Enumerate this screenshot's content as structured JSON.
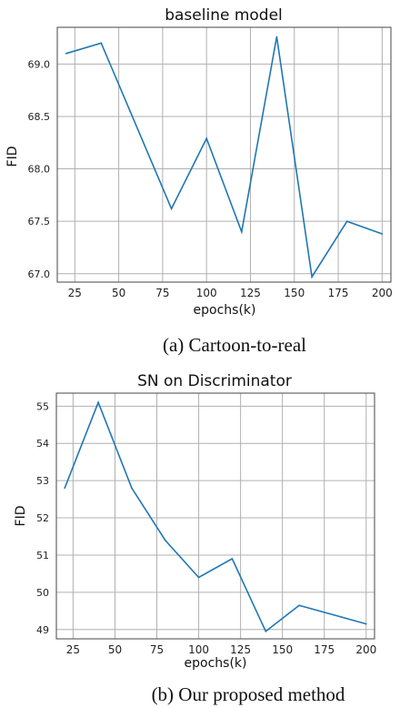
{
  "chart_data": [
    {
      "type": "line",
      "title": "baseline model",
      "xlabel": "epochs(k)",
      "ylabel": "FID",
      "caption": "(a) Cartoon-to-real",
      "x": [
        20,
        40,
        80,
        100,
        120,
        140,
        160,
        180,
        200
      ],
      "series": [
        {
          "values": [
            69.1,
            69.2,
            67.62,
            68.29,
            67.4,
            69.26,
            66.97,
            67.5,
            67.38
          ]
        }
      ],
      "xlim": [
        15,
        205
      ],
      "ylim": [
        66.92,
        69.35
      ],
      "xticks": [
        25,
        50,
        75,
        100,
        125,
        150,
        175,
        200
      ],
      "xtick_labels": [
        "25",
        "50",
        "75",
        "100",
        "125",
        "150",
        "175",
        "200"
      ],
      "yticks": [
        67.0,
        67.5,
        68.0,
        68.5,
        69.0
      ],
      "ytick_labels": [
        "67.0",
        "67.5",
        "68.0",
        "68.5",
        "69.0"
      ],
      "grid": true,
      "line_color": "#1f77b4"
    },
    {
      "type": "line",
      "title": "SN on Discriminator",
      "xlabel": "epochs(k)",
      "ylabel": "FID",
      "caption": "(b) Our proposed method",
      "x": [
        20,
        40,
        60,
        80,
        100,
        120,
        140,
        160,
        200
      ],
      "series": [
        {
          "values": [
            52.8,
            55.1,
            52.8,
            51.4,
            50.4,
            50.9,
            48.95,
            49.65,
            49.15
          ]
        }
      ],
      "xlim": [
        15,
        205
      ],
      "ylim": [
        48.75,
        55.35
      ],
      "xticks": [
        25,
        50,
        75,
        100,
        125,
        150,
        175,
        200
      ],
      "xtick_labels": [
        "25",
        "50",
        "75",
        "100",
        "125",
        "150",
        "175",
        "200"
      ],
      "yticks": [
        49,
        50,
        51,
        52,
        53,
        54,
        55
      ],
      "ytick_labels": [
        "49",
        "50",
        "51",
        "52",
        "53",
        "54",
        "55"
      ],
      "grid": true,
      "line_color": "#1f77b4"
    }
  ]
}
